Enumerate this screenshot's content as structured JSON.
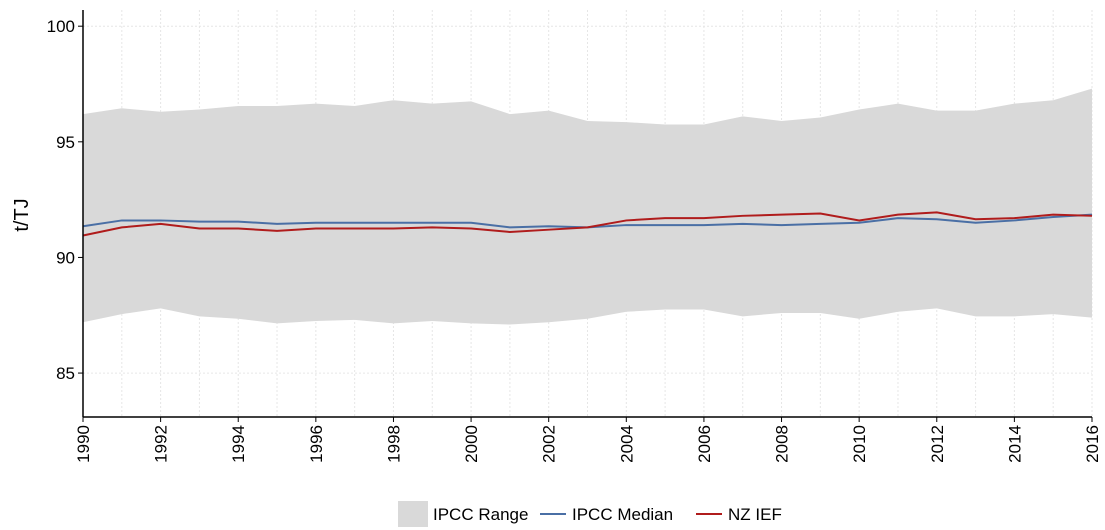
{
  "chart_data": {
    "type": "line",
    "ylabel": "t/TJ",
    "x": [
      1990,
      1991,
      1992,
      1993,
      1994,
      1995,
      1996,
      1997,
      1998,
      1999,
      2000,
      2001,
      2002,
      2003,
      2004,
      2005,
      2006,
      2007,
      2008,
      2009,
      2010,
      2011,
      2012,
      2013,
      2014,
      2015,
      2016
    ],
    "xlim": [
      1990,
      2016
    ],
    "xticks": [
      1990,
      1992,
      1994,
      1996,
      1998,
      2000,
      2002,
      2004,
      2006,
      2008,
      2010,
      2012,
      2014,
      2016
    ],
    "ylim": [
      83.1,
      100.7
    ],
    "yticks": [
      85,
      90,
      95,
      100
    ],
    "grid": true,
    "legend": "bottom",
    "range": {
      "name": "IPCC Range",
      "color": "#d9d9d9",
      "high": [
        96.2,
        96.45,
        96.3,
        96.4,
        96.55,
        96.55,
        96.65,
        96.55,
        96.8,
        96.65,
        96.75,
        96.2,
        96.35,
        95.9,
        95.85,
        95.75,
        95.75,
        96.1,
        95.9,
        96.05,
        96.4,
        96.65,
        96.35,
        96.35,
        96.65,
        96.8,
        97.3
      ],
      "low": [
        87.2,
        87.55,
        87.8,
        87.45,
        87.35,
        87.15,
        87.25,
        87.3,
        87.15,
        87.25,
        87.15,
        87.1,
        87.2,
        87.35,
        87.65,
        87.75,
        87.75,
        87.45,
        87.6,
        87.6,
        87.35,
        87.65,
        87.8,
        87.45,
        87.45,
        87.55,
        87.4
      ]
    },
    "series": [
      {
        "name": "IPCC Median",
        "color": "#4a6fa5",
        "values": [
          91.35,
          91.6,
          91.6,
          91.55,
          91.55,
          91.45,
          91.5,
          91.5,
          91.5,
          91.5,
          91.5,
          91.3,
          91.35,
          91.3,
          91.4,
          91.4,
          91.4,
          91.45,
          91.4,
          91.45,
          91.5,
          91.7,
          91.65,
          91.5,
          91.6,
          91.75,
          91.85
        ]
      },
      {
        "name": "NZ IEF",
        "color": "#b01c1c",
        "values": [
          90.95,
          91.3,
          91.45,
          91.25,
          91.25,
          91.15,
          91.25,
          91.25,
          91.25,
          91.3,
          91.25,
          91.1,
          91.2,
          91.3,
          91.6,
          91.7,
          91.7,
          91.8,
          91.85,
          91.9,
          91.6,
          91.85,
          91.95,
          91.65,
          91.7,
          91.85,
          91.8
        ]
      }
    ]
  }
}
